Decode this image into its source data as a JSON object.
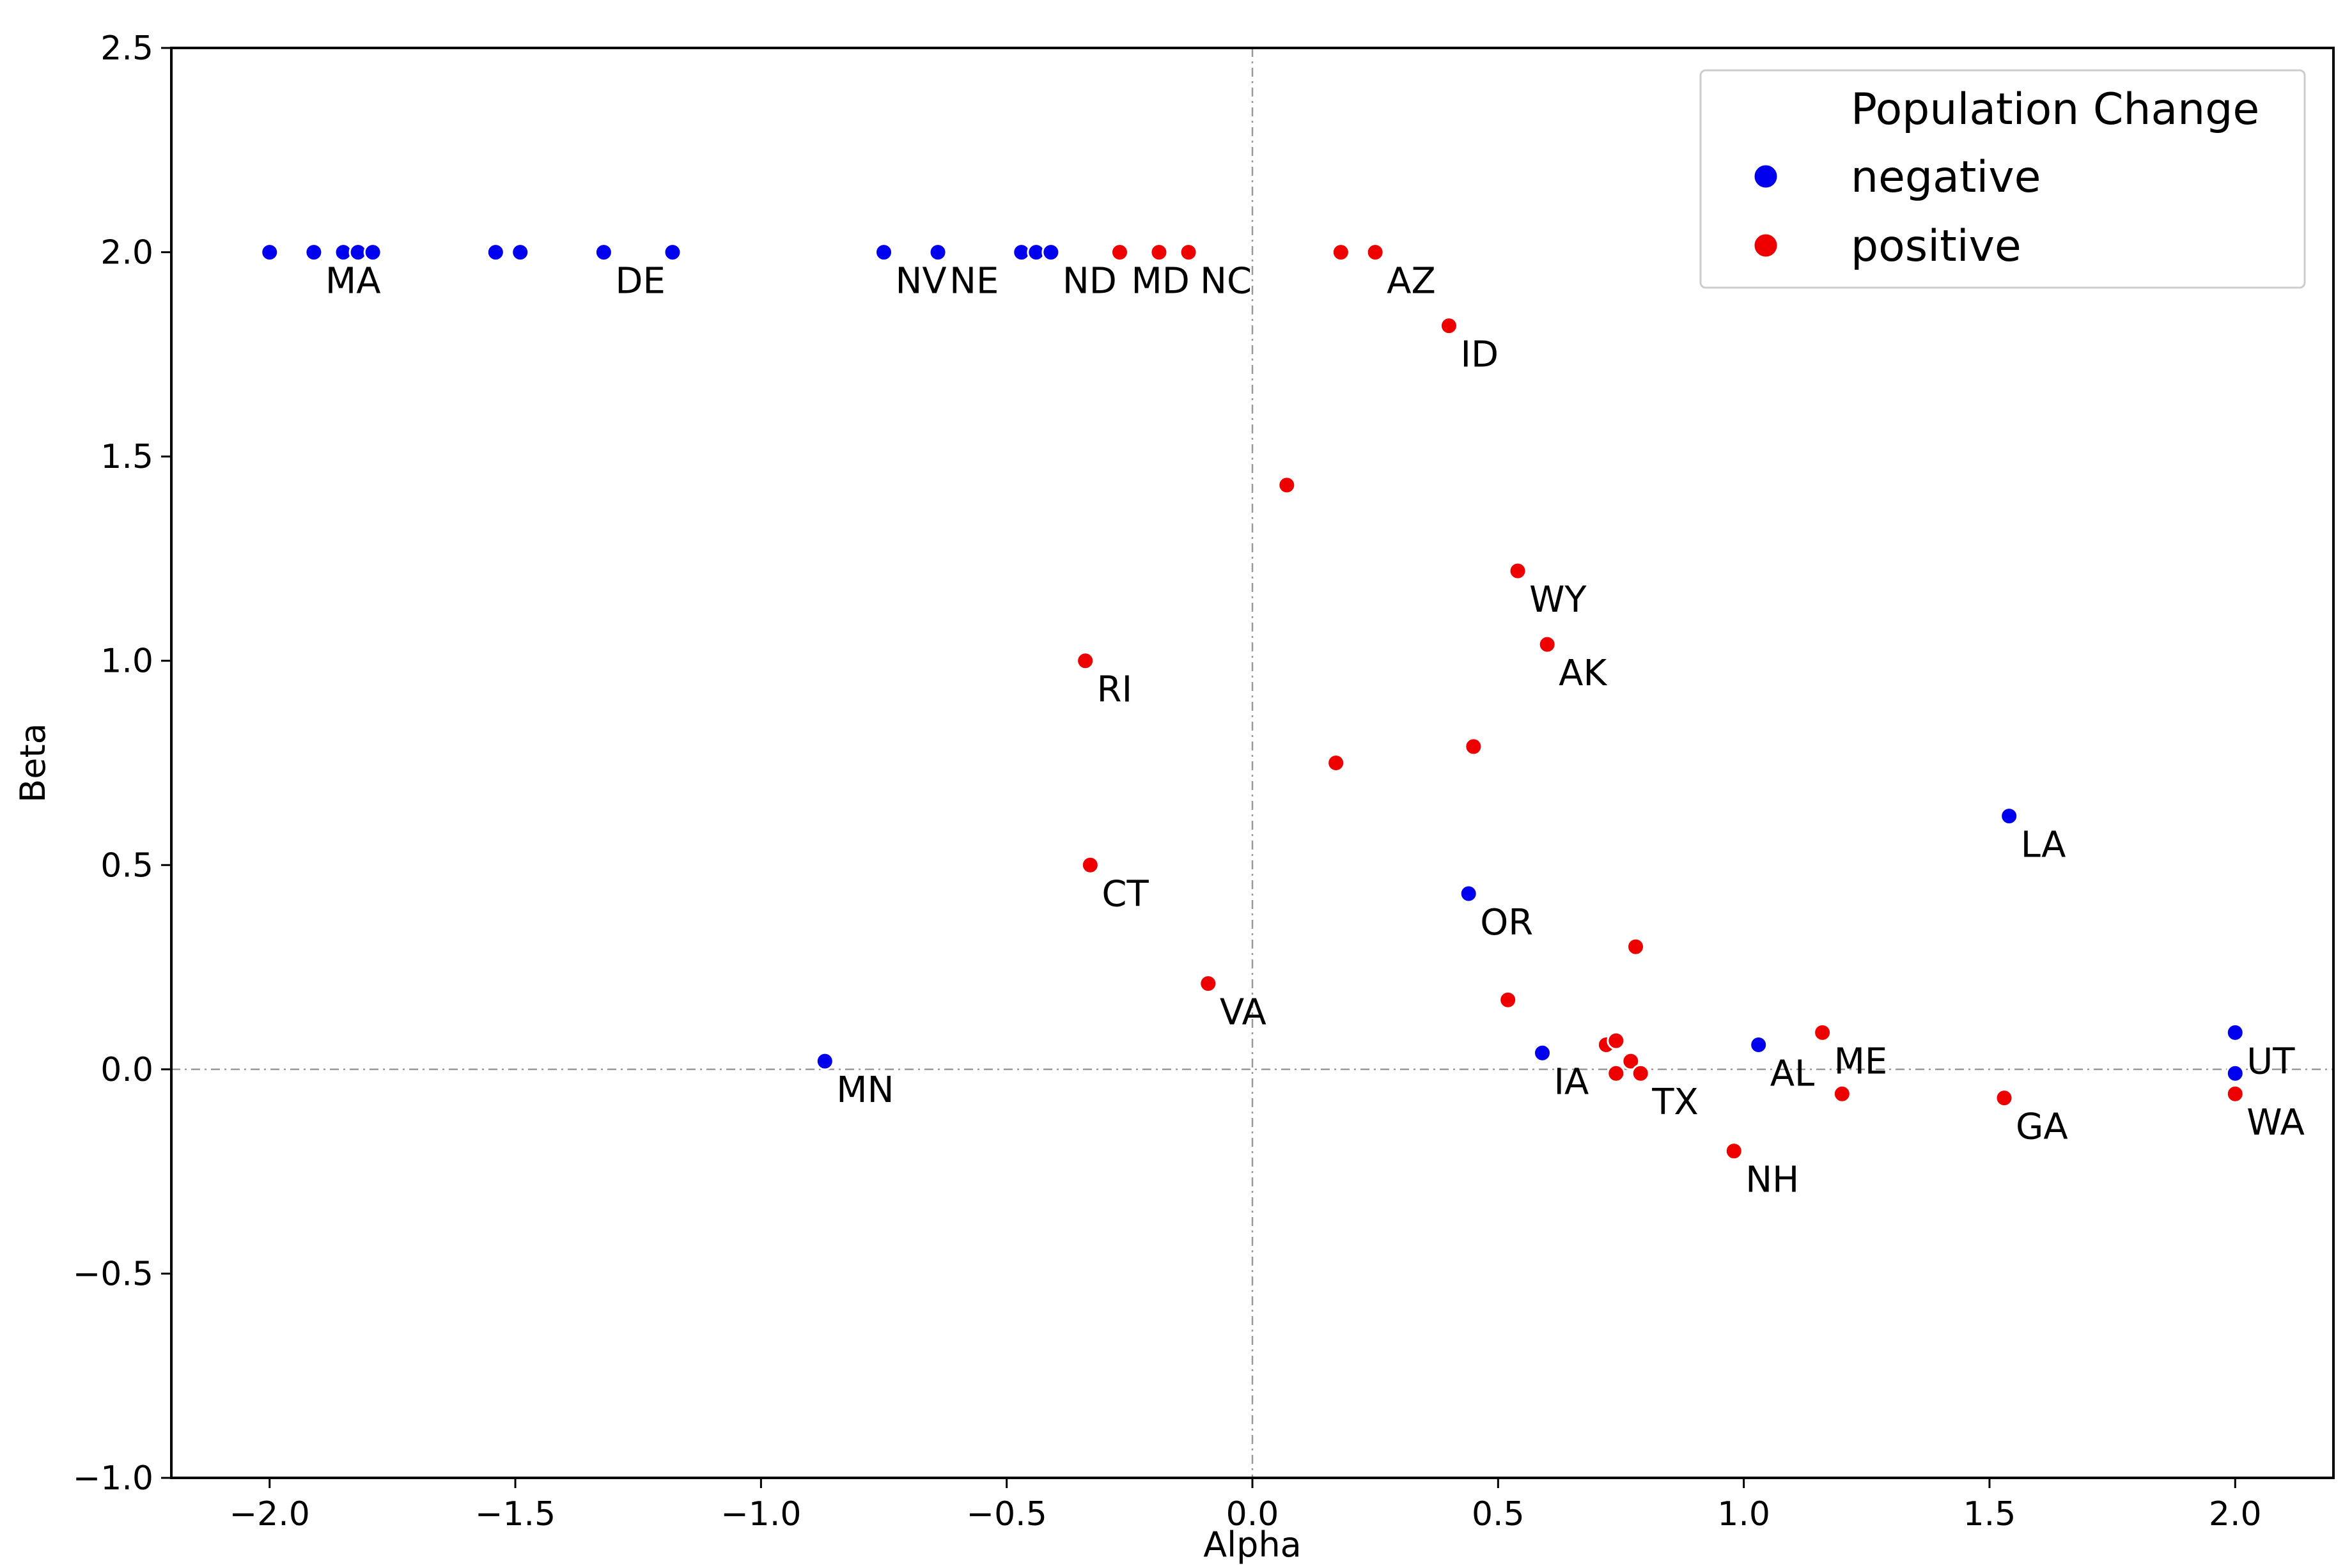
{
  "chart_data": {
    "type": "scatter",
    "title": "",
    "xlabel": "Alpha",
    "ylabel": "Beta",
    "xlim": [
      -2.2,
      2.2
    ],
    "ylim": [
      -1.0,
      2.5
    ],
    "xticks": [
      -2.0,
      -1.5,
      -1.0,
      -0.5,
      0.0,
      0.5,
      1.0,
      1.5,
      2.0
    ],
    "xtick_labels": [
      "−2.0",
      "−1.5",
      "−1.0",
      "−0.5",
      "0.0",
      "0.5",
      "1.0",
      "1.5",
      "2.0"
    ],
    "yticks": [
      -1.0,
      -0.5,
      0.0,
      0.5,
      1.0,
      1.5,
      2.0,
      2.5
    ],
    "ytick_labels": [
      "−1.0",
      "−0.5",
      "0.0",
      "0.5",
      "1.0",
      "1.5",
      "2.0",
      "2.5"
    ],
    "reference_lines": {
      "x": 0.0,
      "y": 0.0
    },
    "legend": {
      "title": "Population Change",
      "position": "top-right",
      "entries": [
        {
          "name": "negative",
          "color": "#0000ee"
        },
        {
          "name": "positive",
          "color": "#ee0000"
        }
      ]
    },
    "series": [
      {
        "name": "negative",
        "color": "#0000ee",
        "points": [
          {
            "x": -2.0,
            "y": 2.0,
            "label": ""
          },
          {
            "x": -1.91,
            "y": 2.0,
            "label": "MA"
          },
          {
            "x": -1.85,
            "y": 2.0,
            "label": ""
          },
          {
            "x": -1.82,
            "y": 2.0,
            "label": ""
          },
          {
            "x": -1.79,
            "y": 2.0,
            "label": ""
          },
          {
            "x": -1.54,
            "y": 2.0,
            "label": ""
          },
          {
            "x": -1.49,
            "y": 2.0,
            "label": ""
          },
          {
            "x": -1.32,
            "y": 2.0,
            "label": "DE"
          },
          {
            "x": -1.18,
            "y": 2.0,
            "label": ""
          },
          {
            "x": -0.75,
            "y": 2.0,
            "label": "NV"
          },
          {
            "x": -0.64,
            "y": 2.0,
            "label": "NE"
          },
          {
            "x": -0.47,
            "y": 2.0,
            "label": ""
          },
          {
            "x": -0.44,
            "y": 2.0,
            "label": ""
          },
          {
            "x": -0.41,
            "y": 2.0,
            "label": "ND"
          },
          {
            "x": -0.87,
            "y": 0.02,
            "label": "MN"
          },
          {
            "x": 0.44,
            "y": 0.43,
            "label": "OR"
          },
          {
            "x": 0.59,
            "y": 0.04,
            "label": "IA"
          },
          {
            "x": 1.03,
            "y": 0.06,
            "label": "AL"
          },
          {
            "x": 1.54,
            "y": 0.62,
            "label": "LA"
          },
          {
            "x": 2.0,
            "y": 0.09,
            "label": "UT"
          },
          {
            "x": 2.0,
            "y": -0.01,
            "label": ""
          }
        ]
      },
      {
        "name": "positive",
        "color": "#ee0000",
        "points": [
          {
            "x": -0.27,
            "y": 2.0,
            "label": "MD"
          },
          {
            "x": -0.19,
            "y": 2.0,
            "label": ""
          },
          {
            "x": -0.13,
            "y": 2.0,
            "label": "NC"
          },
          {
            "x": 0.18,
            "y": 2.0,
            "label": ""
          },
          {
            "x": 0.25,
            "y": 2.0,
            "label": "AZ"
          },
          {
            "x": 0.4,
            "y": 1.82,
            "label": "ID"
          },
          {
            "x": 0.07,
            "y": 1.43,
            "label": ""
          },
          {
            "x": 0.54,
            "y": 1.22,
            "label": "WY"
          },
          {
            "x": 0.6,
            "y": 1.04,
            "label": "AK"
          },
          {
            "x": -0.34,
            "y": 1.0,
            "label": "RI"
          },
          {
            "x": 0.45,
            "y": 0.79,
            "label": ""
          },
          {
            "x": 0.17,
            "y": 0.75,
            "label": ""
          },
          {
            "x": -0.33,
            "y": 0.5,
            "label": "CT"
          },
          {
            "x": -0.09,
            "y": 0.21,
            "label": "VA"
          },
          {
            "x": 0.78,
            "y": 0.3,
            "label": ""
          },
          {
            "x": 0.52,
            "y": 0.17,
            "label": ""
          },
          {
            "x": 0.72,
            "y": 0.06,
            "label": ""
          },
          {
            "x": 0.74,
            "y": 0.07,
            "label": ""
          },
          {
            "x": 0.77,
            "y": 0.02,
            "label": ""
          },
          {
            "x": 0.74,
            "y": -0.01,
            "label": ""
          },
          {
            "x": 0.79,
            "y": -0.01,
            "label": "TX"
          },
          {
            "x": 1.16,
            "y": 0.09,
            "label": "ME"
          },
          {
            "x": 1.2,
            "y": -0.06,
            "label": ""
          },
          {
            "x": 0.98,
            "y": -0.2,
            "label": "NH"
          },
          {
            "x": 1.53,
            "y": -0.07,
            "label": "GA"
          },
          {
            "x": 2.0,
            "y": -0.06,
            "label": "WA"
          }
        ]
      }
    ]
  }
}
